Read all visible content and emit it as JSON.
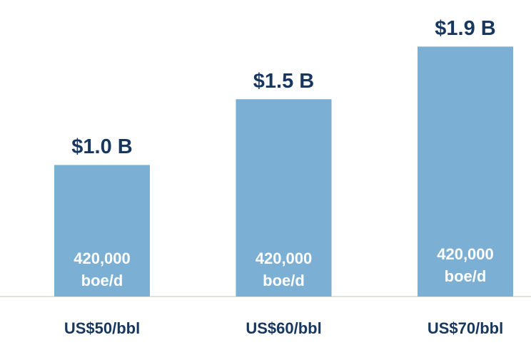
{
  "chart_data": {
    "type": "bar",
    "categories": [
      "US$50/bbl",
      "US$60/bbl",
      "US$70/bbl"
    ],
    "values": [
      1.0,
      1.5,
      1.9
    ],
    "value_labels": [
      "$1.0 B",
      "$1.5 B",
      "$1.9 B"
    ],
    "inner_labels": [
      [
        "420,000",
        "boe/d"
      ],
      [
        "420,000",
        "boe/d"
      ],
      [
        "420,000",
        "boe/d"
      ]
    ],
    "color": "#7bafd4",
    "ylim": [
      0,
      2.2
    ]
  }
}
